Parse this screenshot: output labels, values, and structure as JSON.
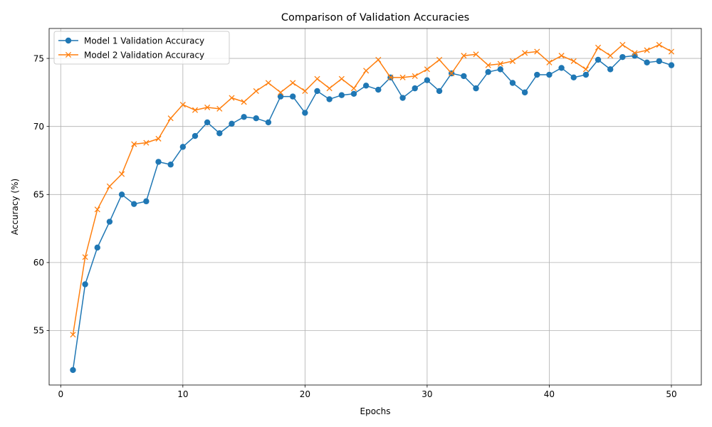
{
  "chart_data": {
    "type": "line",
    "title": "Comparison of Validation Accuracies",
    "xlabel": "Epochs",
    "ylabel": "Accuracy (%)",
    "xlim": [
      -0.95,
      52.45
    ],
    "ylim": [
      51.0,
      77.2
    ],
    "xticks": [
      0,
      10,
      20,
      30,
      40,
      50
    ],
    "yticks": [
      55,
      60,
      65,
      70,
      75
    ],
    "grid": true,
    "legend_position": "upper-left",
    "x": [
      1,
      2,
      3,
      4,
      5,
      6,
      7,
      8,
      9,
      10,
      11,
      12,
      13,
      14,
      15,
      16,
      17,
      18,
      19,
      20,
      21,
      22,
      23,
      24,
      25,
      26,
      27,
      28,
      29,
      30,
      31,
      32,
      33,
      34,
      35,
      36,
      37,
      38,
      39,
      40,
      41,
      42,
      43,
      44,
      45,
      46,
      47,
      48,
      49,
      50
    ],
    "series": [
      {
        "name": "Model 1 Validation Accuracy",
        "color": "#1f77b4",
        "marker": "circle",
        "values": [
          52.1,
          58.4,
          61.1,
          63.0,
          65.0,
          64.3,
          64.5,
          67.4,
          67.2,
          68.5,
          69.3,
          70.3,
          69.5,
          70.2,
          70.7,
          70.6,
          70.3,
          72.2,
          72.2,
          71.0,
          72.6,
          72.0,
          72.3,
          72.4,
          73.0,
          72.7,
          73.6,
          72.1,
          72.8,
          73.4,
          72.6,
          73.9,
          73.7,
          72.8,
          74.0,
          74.2,
          73.2,
          72.5,
          73.8,
          73.8,
          74.3,
          73.6,
          73.8,
          74.9,
          74.2,
          75.1,
          75.2,
          74.7,
          74.8,
          74.5
        ]
      },
      {
        "name": "Model 2 Validation Accuracy",
        "color": "#ff7f0e",
        "marker": "x",
        "values": [
          54.7,
          60.4,
          63.9,
          65.6,
          66.5,
          68.7,
          68.8,
          69.1,
          70.6,
          71.6,
          71.2,
          71.4,
          71.3,
          72.1,
          71.8,
          72.6,
          73.2,
          72.5,
          73.2,
          72.6,
          73.5,
          72.8,
          73.5,
          72.8,
          74.1,
          74.9,
          73.6,
          73.6,
          73.7,
          74.2,
          74.9,
          73.9,
          75.2,
          75.3,
          74.5,
          74.6,
          74.8,
          75.4,
          75.5,
          74.7,
          75.2,
          74.8,
          74.2,
          75.8,
          75.2,
          76.0,
          75.4,
          75.6,
          76.0,
          75.5
        ]
      }
    ]
  }
}
